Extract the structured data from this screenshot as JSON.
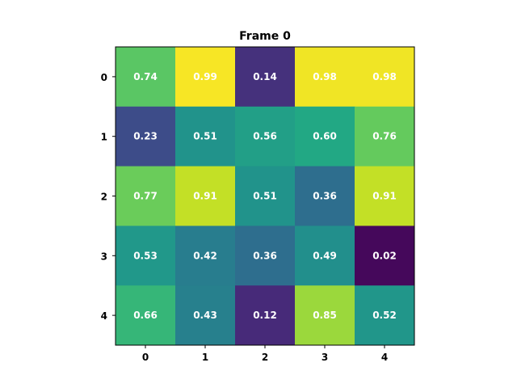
{
  "chart_data": {
    "type": "heatmap",
    "title": "Frame 0",
    "x_ticks": [
      "0",
      "1",
      "2",
      "3",
      "4"
    ],
    "y_ticks": [
      "0",
      "1",
      "2",
      "3",
      "4"
    ],
    "values": [
      [
        0.74,
        0.99,
        0.14,
        0.98,
        0.98
      ],
      [
        0.23,
        0.51,
        0.56,
        0.6,
        0.76
      ],
      [
        0.77,
        0.91,
        0.51,
        0.36,
        0.91
      ],
      [
        0.53,
        0.42,
        0.36,
        0.49,
        0.02
      ],
      [
        0.66,
        0.43,
        0.12,
        0.85,
        0.52
      ]
    ],
    "labels": [
      [
        "0.74",
        "0.99",
        "0.14",
        "0.98",
        "0.98"
      ],
      [
        "0.23",
        "0.51",
        "0.56",
        "0.60",
        "0.76"
      ],
      [
        "0.77",
        "0.91",
        "0.51",
        "0.36",
        "0.91"
      ],
      [
        "0.53",
        "0.42",
        "0.36",
        "0.49",
        "0.02"
      ],
      [
        "0.66",
        "0.43",
        "0.12",
        "0.85",
        "0.52"
      ]
    ],
    "colormap": "viridis",
    "color_range": [
      0,
      1
    ],
    "label_color": "#ffffff",
    "grid": false
  }
}
